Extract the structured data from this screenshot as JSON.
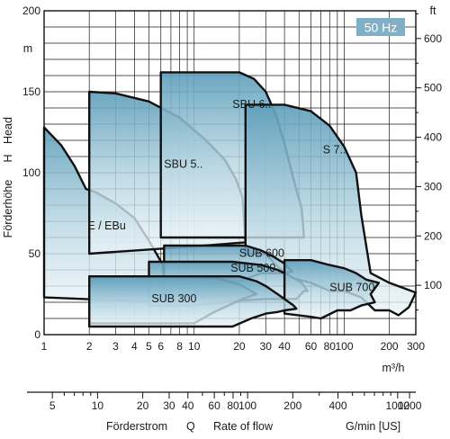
{
  "chart_data": {
    "type": "area",
    "badge": "50 Hz",
    "x_axis": {
      "unit": "m³/h",
      "scale": "log",
      "range": [
        1,
        300
      ],
      "ticks": [
        1,
        2,
        3,
        4,
        5,
        6,
        8,
        10,
        20,
        30,
        40,
        60,
        80,
        100,
        200,
        300
      ],
      "tick_labels": [
        "1",
        "2",
        "3",
        "4",
        "5",
        "6",
        "8",
        "10",
        "20",
        "30",
        "40",
        "60",
        "80",
        "100",
        "200",
        "300"
      ]
    },
    "x_axis_secondary": {
      "unit": "G/min [US]",
      "ticks": [
        5,
        10,
        20,
        30,
        40,
        60,
        80,
        100,
        200,
        400,
        1000,
        1200
      ],
      "tick_labels": [
        "5",
        "10",
        "20",
        "30",
        "40",
        "60",
        "80",
        "100",
        "200",
        "400",
        "1000",
        "1200"
      ],
      "minor_ticks": [
        6,
        7,
        8,
        9,
        50,
        70,
        90,
        300,
        500,
        600,
        700,
        800,
        900
      ]
    },
    "y_axis": {
      "unit": "m",
      "range": [
        0,
        200
      ],
      "ticks": [
        0,
        50,
        100,
        150,
        200
      ],
      "tick_labels": [
        "0",
        "50",
        "100",
        "150",
        "200"
      ],
      "label_de": "Förderhöhe",
      "label_symbol": "H",
      "label_en": "Head"
    },
    "y_axis_secondary": {
      "unit": "ft",
      "ticks": [
        100,
        200,
        300,
        400,
        500,
        600
      ],
      "tick_labels": [
        "100",
        "200",
        "300",
        "400",
        "500",
        "600"
      ],
      "minor_ticks": [
        50,
        150,
        250,
        350,
        450,
        550,
        650
      ]
    },
    "footer": {
      "de": "Förderstrom",
      "symbol": "Q",
      "en": "Rate of flow"
    },
    "series": [
      {
        "name": "E / EBu",
        "label_at": [
          1.95,
          65
        ],
        "outline": [
          [
            1,
            23
          ],
          [
            1,
            128
          ],
          [
            1.3,
            117
          ],
          [
            1.6,
            104
          ],
          [
            1.9,
            90
          ],
          [
            2.2,
            88
          ],
          [
            3,
            81
          ],
          [
            4,
            72
          ],
          [
            5,
            58
          ],
          [
            6.2,
            43
          ],
          [
            6.3,
            20
          ],
          [
            1,
            23
          ]
        ]
      },
      {
        "name": "SBU 5..",
        "label_at": [
          6.3,
          103
        ],
        "outline": [
          [
            2,
            150
          ],
          [
            3,
            149
          ],
          [
            5,
            144
          ],
          [
            8,
            134
          ],
          [
            12,
            120
          ],
          [
            16,
            108
          ],
          [
            19,
            96
          ],
          [
            21,
            85
          ],
          [
            22,
            57
          ],
          [
            8.4,
            54
          ],
          [
            2,
            50
          ],
          [
            2,
            150
          ]
        ]
      },
      {
        "name": "SBU 6..",
        "label_at": [
          18,
          140
        ],
        "outline": [
          [
            6,
            162
          ],
          [
            20,
            162
          ],
          [
            25,
            158
          ],
          [
            30,
            150
          ],
          [
            35,
            136
          ],
          [
            40,
            118
          ],
          [
            46,
            96
          ],
          [
            52,
            78
          ],
          [
            54,
            60
          ],
          [
            40,
            60
          ],
          [
            6,
            60
          ],
          [
            6,
            162
          ]
        ]
      },
      {
        "name": "S 7..",
        "label_at": [
          72,
          112
        ],
        "outline": [
          [
            22,
            142
          ],
          [
            40,
            142
          ],
          [
            60,
            138
          ],
          [
            80,
            129
          ],
          [
            100,
            116
          ],
          [
            120,
            100
          ],
          [
            130,
            74
          ],
          [
            150,
            38
          ],
          [
            200,
            32
          ],
          [
            300,
            26
          ],
          [
            270,
            17
          ],
          [
            230,
            12
          ],
          [
            200,
            15
          ],
          [
            160,
            15
          ],
          [
            130,
            23
          ],
          [
            100,
            27
          ],
          [
            80,
            27
          ],
          [
            60,
            32
          ],
          [
            45,
            35
          ],
          [
            35,
            43
          ],
          [
            30,
            50
          ],
          [
            22,
            50
          ],
          [
            22,
            142
          ]
        ]
      },
      {
        "name": "SUB 600",
        "label_at": [
          20,
          48
        ],
        "outline": [
          [
            6.3,
            55
          ],
          [
            22,
            55
          ],
          [
            28,
            52
          ],
          [
            34,
            48
          ],
          [
            40,
            44
          ],
          [
            45,
            39
          ],
          [
            40,
            38
          ],
          [
            28,
            38
          ],
          [
            20,
            33
          ],
          [
            10,
            30
          ],
          [
            6.3,
            30
          ],
          [
            6.3,
            55
          ]
        ]
      },
      {
        "name": "SUB 500",
        "label_at": [
          17.5,
          39
        ],
        "outline": [
          [
            5,
            45
          ],
          [
            18,
            45
          ],
          [
            28,
            43
          ],
          [
            36,
            40
          ],
          [
            42,
            37
          ],
          [
            48,
            34
          ],
          [
            52,
            32
          ],
          [
            57,
            27
          ],
          [
            54,
            27
          ],
          [
            48,
            22
          ],
          [
            40,
            22
          ],
          [
            30,
            22
          ],
          [
            20,
            21
          ],
          [
            10,
            18
          ],
          [
            5,
            18
          ],
          [
            5,
            45
          ]
        ]
      },
      {
        "name": "SUB 300",
        "label_at": [
          5.2,
          20
        ],
        "outline": [
          [
            2,
            36
          ],
          [
            8,
            36
          ],
          [
            14,
            35
          ],
          [
            20,
            31
          ],
          [
            23,
            28
          ],
          [
            26,
            25
          ],
          [
            21,
            22
          ],
          [
            16,
            17
          ],
          [
            13,
            13
          ],
          [
            10,
            7
          ],
          [
            2,
            7
          ],
          [
            2,
            36
          ]
        ]
      },
      {
        "name": "SUB 700",
        "label_at": [
          80,
          27
        ],
        "outline": [
          [
            40,
            46
          ],
          [
            60,
            46
          ],
          [
            80,
            43
          ],
          [
            100,
            41
          ],
          [
            120,
            38
          ],
          [
            140,
            34
          ],
          [
            170,
            32
          ],
          [
            150,
            25
          ],
          [
            160,
            20
          ],
          [
            130,
            18
          ],
          [
            110,
            15
          ],
          [
            90,
            15
          ],
          [
            70,
            10
          ],
          [
            60,
            11
          ],
          [
            40,
            13
          ],
          [
            40,
            46
          ]
        ]
      },
      {
        "name": "",
        "outline": [
          [
            2,
            36
          ],
          [
            20,
            36
          ],
          [
            26,
            33
          ],
          [
            30,
            30
          ],
          [
            36,
            25
          ],
          [
            46,
            18
          ],
          [
            48,
            16
          ],
          [
            40,
            15
          ],
          [
            36,
            14
          ],
          [
            30,
            13
          ],
          [
            24,
            10
          ],
          [
            18,
            5
          ],
          [
            10,
            5
          ],
          [
            2,
            5
          ],
          [
            2,
            36
          ]
        ]
      }
    ]
  }
}
